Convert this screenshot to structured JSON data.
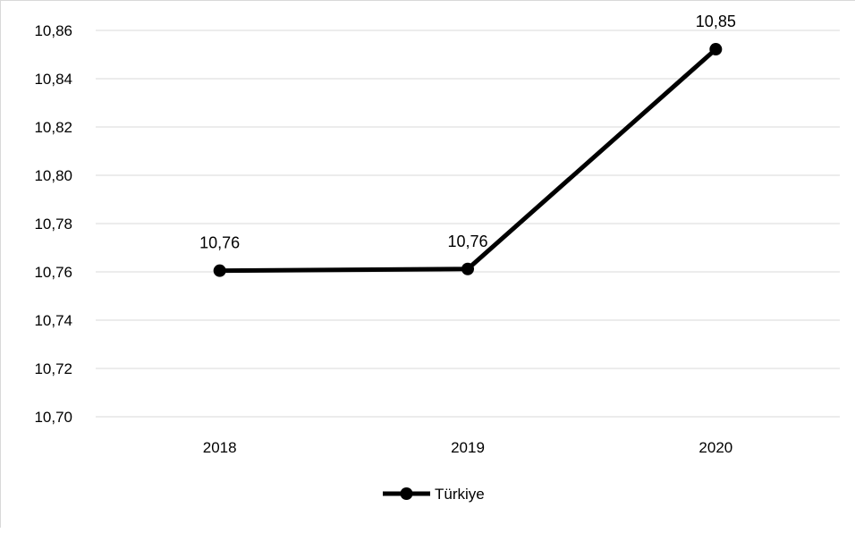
{
  "chart_data": {
    "type": "line",
    "categories": [
      "2018",
      "2019",
      "2020"
    ],
    "series": [
      {
        "name": "Türkiye",
        "values": [
          10.7605,
          10.7612,
          10.8522
        ],
        "labels": [
          "10,76",
          "10,76",
          "10,85"
        ],
        "color": "#000000"
      }
    ],
    "ylim": [
      10.7,
      10.86
    ],
    "yticks": [
      "10,70",
      "10,72",
      "10,74",
      "10,76",
      "10,78",
      "10,80",
      "10,82",
      "10,84",
      "10,86"
    ],
    "ytick_values": [
      10.7,
      10.72,
      10.74,
      10.76,
      10.78,
      10.8,
      10.82,
      10.84,
      10.86
    ],
    "grid": true,
    "legend": "bottom-center",
    "gridline_color": "#d9d9d9",
    "title": "",
    "xlabel": "",
    "ylabel": ""
  }
}
